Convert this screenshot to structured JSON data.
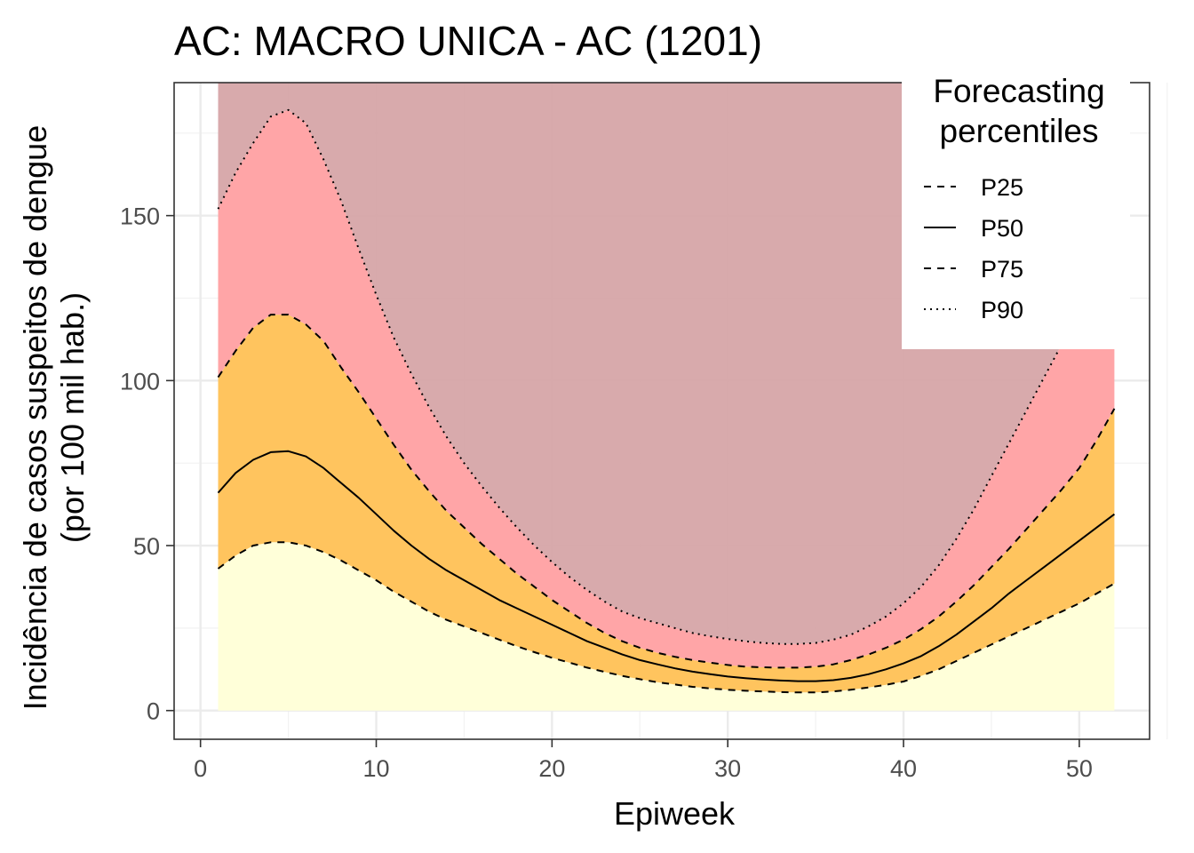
{
  "chart_data": {
    "type": "area",
    "title": "AC: MACRO UNICA - AC (1201)",
    "xlabel": "Epiweek",
    "ylabel_line1": "Incidência de casos suspeitos de dengue",
    "ylabel_line2": "(por 100 mil hab.)",
    "xlim": [
      -1.5,
      54
    ],
    "ylim": [
      -8.7,
      190.3
    ],
    "x_ticks": [
      0,
      10,
      20,
      30,
      40,
      50
    ],
    "y_ticks": [
      0,
      50,
      100,
      150
    ],
    "grid": true,
    "band_top": 190.3,
    "band_colors": {
      "below_p25": "#FFFFD9",
      "p25_p75": "#FFC45E",
      "p75_p90": "#FFA5A7",
      "above_p90": "#D5A4A6"
    },
    "legend": {
      "title_line1": "Forecasting",
      "title_line2": "percentiles",
      "position": "top-right",
      "items": [
        {
          "label": "P25",
          "style": "dashed"
        },
        {
          "label": "P50",
          "style": "solid"
        },
        {
          "label": "P75",
          "style": "dashed"
        },
        {
          "label": "P90",
          "style": "dotted"
        }
      ]
    },
    "x": [
      1,
      2,
      3,
      4,
      5,
      6,
      7,
      8,
      9,
      10,
      11,
      12,
      13,
      14,
      15,
      16,
      17,
      18,
      19,
      20,
      21,
      22,
      23,
      24,
      25,
      26,
      27,
      28,
      29,
      30,
      31,
      32,
      33,
      34,
      35,
      36,
      37,
      38,
      39,
      40,
      41,
      42,
      43,
      44,
      45,
      46,
      47,
      48,
      49,
      50,
      51,
      52
    ],
    "series": [
      {
        "name": "P25",
        "style": "dashed",
        "values": [
          43,
          47,
          50,
          51,
          51,
          50,
          48,
          45.5,
          42.5,
          39.5,
          36,
          33,
          30,
          27.5,
          25.5,
          23.5,
          21.5,
          19.5,
          17.7,
          16,
          14.5,
          13,
          11.7,
          10.5,
          9.5,
          8.6,
          7.9,
          7.2,
          6.7,
          6.3,
          6,
          5.8,
          5.6,
          5.5,
          5.5,
          5.8,
          6.3,
          7,
          7.8,
          8.8,
          10.5,
          12.5,
          15,
          17.5,
          20,
          22.5,
          25,
          27.5,
          30,
          32.5,
          35.5,
          38.5
        ]
      },
      {
        "name": "P50",
        "style": "solid",
        "values": [
          66,
          72,
          76,
          78.3,
          78.6,
          77,
          73.5,
          69,
          64.5,
          59.5,
          54.5,
          50,
          46,
          42.5,
          39.5,
          36.5,
          33.5,
          31,
          28.5,
          26,
          23.5,
          21,
          19,
          17,
          15.3,
          14,
          12.8,
          11.8,
          11,
          10.3,
          9.8,
          9.4,
          9.1,
          8.9,
          8.9,
          9.2,
          9.9,
          11,
          12.5,
          14.3,
          16.5,
          19.5,
          23,
          27,
          31,
          35.5,
          39.5,
          43.5,
          47.5,
          51.5,
          55.5,
          59.5
        ]
      },
      {
        "name": "P75",
        "style": "dashed",
        "values": [
          101,
          109,
          116,
          120,
          120,
          117,
          112,
          104,
          96.5,
          88.5,
          80.5,
          73,
          66.5,
          60.5,
          55.5,
          50.5,
          46,
          41.5,
          37.5,
          33.5,
          30,
          26.5,
          23.5,
          21,
          19,
          17.5,
          16.3,
          15.3,
          14.5,
          13.8,
          13.3,
          13.1,
          13,
          13,
          13.3,
          14,
          15.3,
          17,
          19,
          21.5,
          24.7,
          28.5,
          33,
          38,
          43.5,
          49,
          55,
          61,
          67,
          73.5,
          82,
          91.5
        ]
      },
      {
        "name": "P90",
        "style": "dotted",
        "values": [
          152,
          163,
          172,
          180,
          182,
          178,
          167,
          154.5,
          140,
          126,
          113,
          102,
          92,
          83,
          75,
          68,
          61.5,
          55.5,
          50,
          45,
          40.5,
          36.5,
          33,
          30,
          28,
          26.5,
          25,
          23.5,
          22.5,
          21.7,
          21,
          20.5,
          20.2,
          20.2,
          20.5,
          21.5,
          23,
          25.5,
          28.5,
          32.5,
          37.5,
          44,
          52,
          61,
          71,
          81,
          91,
          101,
          111,
          121,
          131,
          141
        ]
      }
    ]
  }
}
